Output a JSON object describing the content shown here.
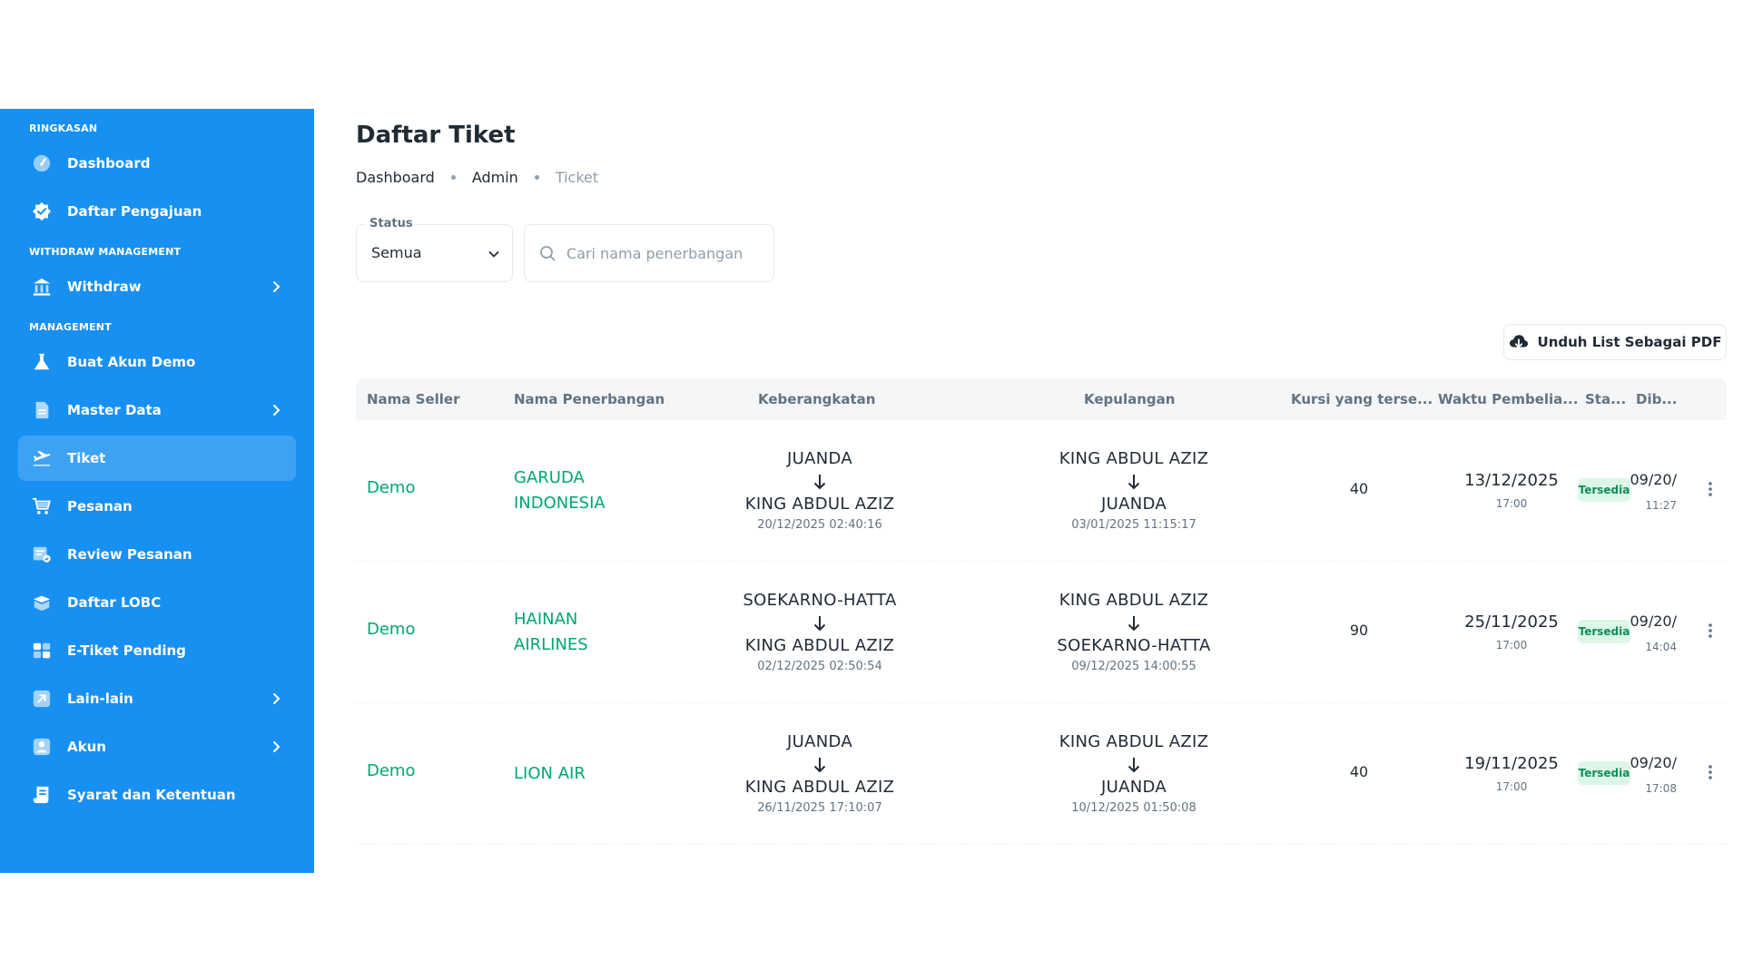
{
  "sidebar": {
    "sections": [
      {
        "title": "RINGKASAN",
        "items": [
          {
            "label": "Dashboard",
            "icon": "speedometer-icon",
            "chevron": false,
            "active": false
          },
          {
            "label": "Daftar Pengajuan",
            "icon": "verified-badge-icon",
            "chevron": false,
            "active": false
          }
        ]
      },
      {
        "title": "WITHDRAW MANAGEMENT",
        "items": [
          {
            "label": "Withdraw",
            "icon": "bank-icon",
            "chevron": true,
            "active": false
          }
        ]
      },
      {
        "title": "MANAGEMENT",
        "items": [
          {
            "label": "Buat Akun Demo",
            "icon": "flask-icon",
            "chevron": false,
            "active": false
          },
          {
            "label": "Master Data",
            "icon": "document-icon",
            "chevron": true,
            "active": false
          },
          {
            "label": "Tiket",
            "icon": "airplane-takeoff-icon",
            "chevron": false,
            "active": true
          },
          {
            "label": "Pesanan",
            "icon": "cart-icon",
            "chevron": false,
            "active": false
          },
          {
            "label": "Review Pesanan",
            "icon": "review-list-icon",
            "chevron": false,
            "active": false
          },
          {
            "label": "Daftar LOBC",
            "icon": "box-icon",
            "chevron": false,
            "active": false
          },
          {
            "label": "E-Tiket Pending",
            "icon": "ticket-icon",
            "chevron": false,
            "active": false
          },
          {
            "label": "Lain-lain",
            "icon": "external-link-icon",
            "chevron": true,
            "active": false
          },
          {
            "label": "Akun",
            "icon": "user-icon",
            "chevron": true,
            "active": false
          },
          {
            "label": "Syarat dan Ketentuan",
            "icon": "scroll-icon",
            "chevron": false,
            "active": false
          }
        ]
      }
    ]
  },
  "page": {
    "title": "Daftar Tiket",
    "breadcrumb": [
      "Dashboard",
      "Admin",
      "Ticket"
    ]
  },
  "filters": {
    "status_label": "Status",
    "status_value": "Semua",
    "search_placeholder": "Cari nama penerbangan"
  },
  "toolbar": {
    "pdf_label": "Unduh List Sebagai PDF"
  },
  "table": {
    "columns": [
      "Nama Seller",
      "Nama Penerbangan",
      "Keberangkatan",
      "Kepulangan",
      "Kursi yang terse...",
      "Waktu Pembelia...",
      "Sta...",
      "Dib..."
    ],
    "rows": [
      {
        "seller": "Demo",
        "airline": "GARUDA INDONESIA",
        "dep_from": "JUANDA",
        "dep_to": "KING ABDUL AZIZ",
        "dep_time": "20/12/2025 02:40:16",
        "ret_from": "KING ABDUL AZIZ",
        "ret_to": "JUANDA",
        "ret_time": "03/01/2025 11:15:17",
        "seats": "40",
        "purchase_date": "13/12/2025",
        "purchase_time": "17:00",
        "status": "Tersedia",
        "created_date": "/09/20:",
        "created_time": "11:27"
      },
      {
        "seller": "Demo",
        "airline": "HAINAN AIRLINES",
        "dep_from": "SOEKARNO-HATTA",
        "dep_to": "KING ABDUL AZIZ",
        "dep_time": "02/12/2025 02:50:54",
        "ret_from": "KING ABDUL AZIZ",
        "ret_to": "SOEKARNO-HATTA",
        "ret_time": "09/12/2025 14:00:55",
        "seats": "90",
        "purchase_date": "25/11/2025",
        "purchase_time": "17:00",
        "status": "Tersedia",
        "created_date": "/09/20:",
        "created_time": "14:04"
      },
      {
        "seller": "Demo",
        "airline": "LION AIR",
        "dep_from": "JUANDA",
        "dep_to": "KING ABDUL AZIZ",
        "dep_time": "26/11/2025 17:10:07",
        "ret_from": "KING ABDUL AZIZ",
        "ret_to": "JUANDA",
        "ret_time": "10/12/2025 01:50:08",
        "seats": "40",
        "purchase_date": "19/11/2025",
        "purchase_time": "17:00",
        "status": "Tersedia",
        "created_date": "/09/20:",
        "created_time": "17:08"
      }
    ]
  },
  "colors": {
    "sidebar_bg": "#1890f2",
    "link_green": "#00a76f",
    "badge_bg": "#dcf6e7",
    "badge_text": "#118d57"
  }
}
